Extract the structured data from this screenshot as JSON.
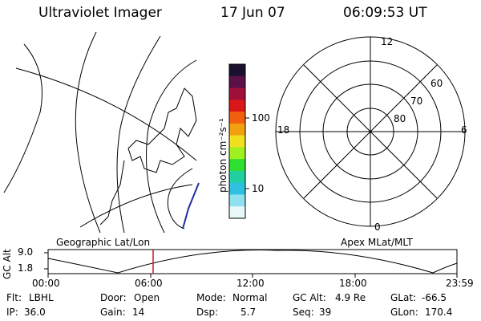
{
  "header": {
    "title": "Ultraviolet Imager",
    "date": "17 Jun 07",
    "time": "06:09:53 UT"
  },
  "colorbar": {
    "unit_label": "photon cm⁻²s⁻¹",
    "tick_100": "100",
    "tick_10": "10",
    "colors": [
      "#1a1030",
      "#5a1048",
      "#a0103a",
      "#d81818",
      "#f06010",
      "#f0a010",
      "#f0e020",
      "#a0f020",
      "#30e030",
      "#20d0a0",
      "#30c0e0",
      "#90e0f0",
      "#e8f8f8"
    ]
  },
  "polar": {
    "label_12": "12",
    "label_18": "18",
    "label_6": "6",
    "label_0": "0",
    "label_60": "60",
    "label_70": "70",
    "label_80": "80"
  },
  "panels": {
    "geo_label": "Geographic Lat/Lon",
    "apex_label": "Apex MLat/MLT"
  },
  "timeline": {
    "y_axis_label": "GC Alt",
    "y_top": "9.0",
    "y_bottom": "1.8",
    "ticks": [
      "00:00",
      "06:00",
      "12:00",
      "18:00",
      "23:59"
    ],
    "marker_color": "#c02020"
  },
  "info": {
    "row1": [
      {
        "label": "Flt:",
        "value": "LBHL"
      },
      {
        "label": "Door:",
        "value": "Open"
      },
      {
        "label": "Mode:",
        "value": "Normal"
      },
      {
        "label": "GC Alt:",
        "value": "4.9 Re"
      },
      {
        "label": "GLat:",
        "value": "-66.5"
      }
    ],
    "row2": [
      {
        "label": "IP:",
        "value": "36.0"
      },
      {
        "label": "Gain:",
        "value": "14"
      },
      {
        "label": "Dsp:",
        "value": "5.7"
      },
      {
        "label": "Seq:",
        "value": "39"
      },
      {
        "label": "GLon:",
        "value": "170.4"
      }
    ]
  }
}
